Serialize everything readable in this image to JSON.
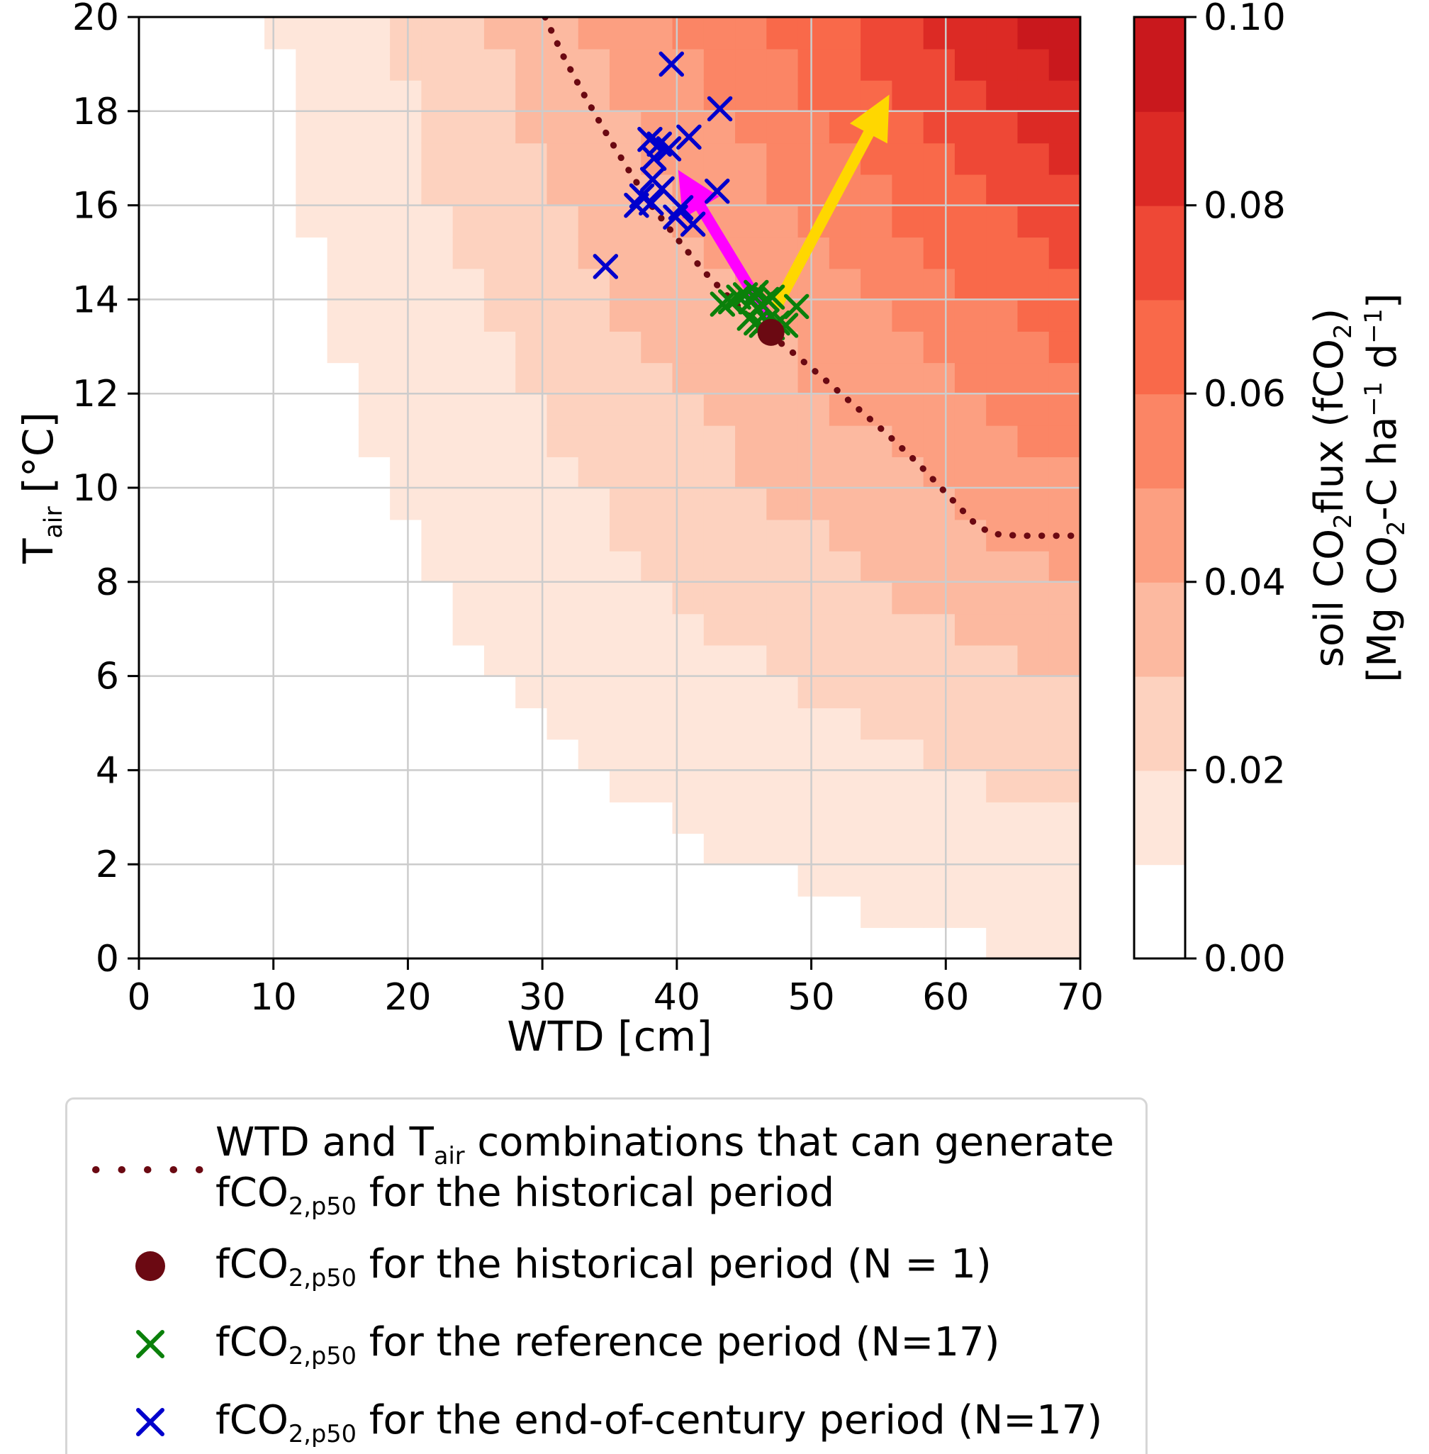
{
  "chart_data": {
    "type": "heatmap",
    "xlabel": "WTD [cm]",
    "ylabel_parts": [
      {
        "t": "T"
      },
      {
        "sub": "air"
      },
      {
        "t": " [°C]"
      }
    ],
    "xlim": [
      0,
      70
    ],
    "ylim": [
      0,
      20
    ],
    "xticks": [
      0,
      10,
      20,
      30,
      40,
      50,
      60,
      70
    ],
    "yticks": [
      0,
      2,
      4,
      6,
      8,
      10,
      12,
      14,
      16,
      18,
      20
    ],
    "grid": true,
    "grid_color": "#cccccc",
    "levels": {
      "min": 0.0,
      "max": 0.1,
      "step": 0.01
    },
    "band_colors": [
      "#ffffff",
      "#fee6da",
      "#fdd2bf",
      "#fcb9a0",
      "#fc9f81",
      "#fb8565",
      "#f9694a",
      "#ee4836",
      "#dc2a25",
      "#c9181d"
    ],
    "field_model": {
      "description": "estimated fCO2 surface: fCO2 = fmax*(WTD/70)^1.2*((Tair+5)/25)^1.4",
      "fmax": 0.1,
      "w_max": 70,
      "w_exp": 1.2,
      "t_offset": 5,
      "t_scale": 25,
      "t_exp": 1.4,
      "grid_nx": 30,
      "grid_ny": 30
    },
    "p50_contour": {
      "color": "#6b0912",
      "points": [
        [
          30.2,
          20
        ],
        [
          31.5,
          19.2
        ],
        [
          33,
          18.4
        ],
        [
          34.6,
          17.6
        ],
        [
          36.3,
          16.8
        ],
        [
          38.1,
          16.0
        ],
        [
          40.0,
          15.3
        ],
        [
          42.0,
          14.6
        ],
        [
          44.2,
          13.95
        ],
        [
          46.3,
          13.4
        ],
        [
          48.5,
          12.9
        ],
        [
          50.8,
          12.35
        ],
        [
          53.2,
          11.75
        ],
        [
          55.6,
          11.15
        ],
        [
          58.0,
          10.5
        ],
        [
          60.3,
          9.8
        ],
        [
          62.3,
          9.2
        ],
        [
          63.5,
          9.02
        ],
        [
          65.5,
          8.98
        ],
        [
          68.0,
          8.98
        ],
        [
          70.0,
          8.98
        ]
      ]
    },
    "historical_point": {
      "color": "#6b0912",
      "x": 47.0,
      "y": 13.3
    },
    "reference_points": {
      "color": "#0a800a",
      "points": [
        [
          43.4,
          13.9
        ],
        [
          44.0,
          13.95
        ],
        [
          44.6,
          14.05
        ],
        [
          45.1,
          14.1
        ],
        [
          45.5,
          13.95
        ],
        [
          45.9,
          14.15
        ],
        [
          46.3,
          13.9
        ],
        [
          46.7,
          14.0
        ],
        [
          47.1,
          14.05
        ],
        [
          45.4,
          13.6
        ],
        [
          45.9,
          13.5
        ],
        [
          46.3,
          13.45
        ],
        [
          46.7,
          13.55
        ],
        [
          47.1,
          13.4
        ],
        [
          47.5,
          13.5
        ],
        [
          48.1,
          13.45
        ],
        [
          48.9,
          13.85
        ]
      ]
    },
    "end_of_century_points": {
      "color": "#0000cc",
      "points": [
        [
          39.6,
          19.0
        ],
        [
          43.2,
          18.05
        ],
        [
          40.9,
          17.45
        ],
        [
          38.0,
          17.4
        ],
        [
          38.7,
          17.3
        ],
        [
          39.4,
          17.2
        ],
        [
          38.3,
          17.0
        ],
        [
          43.0,
          16.3
        ],
        [
          38.2,
          16.55
        ],
        [
          38.9,
          16.35
        ],
        [
          37.4,
          16.2
        ],
        [
          38.1,
          16.05
        ],
        [
          37.0,
          16.0
        ],
        [
          40.3,
          15.95
        ],
        [
          41.2,
          15.6
        ],
        [
          39.9,
          15.75
        ],
        [
          34.7,
          14.7
        ]
      ]
    },
    "arrows": [
      {
        "name": "magenta-arrow",
        "color": "#ff00ff",
        "from": [
          46.9,
          13.55
        ],
        "to": [
          40.1,
          16.75
        ]
      },
      {
        "name": "yellow-arrow",
        "color": "#ffd700",
        "from": [
          47.4,
          13.85
        ],
        "to": [
          55.8,
          18.35
        ]
      }
    ],
    "colorbar": {
      "ticks": [
        "0.00",
        "0.02",
        "0.04",
        "0.06",
        "0.08",
        "0.10"
      ],
      "tick_values": [
        0,
        0.02,
        0.04,
        0.06,
        0.08,
        0.1
      ],
      "label_line1_parts": [
        {
          "t": "soil CO"
        },
        {
          "sub": "2"
        },
        {
          "t": "flux (fCO"
        },
        {
          "sub": "2"
        },
        {
          "t": ")"
        }
      ],
      "label_line2_parts": [
        {
          "t": "[Mg CO"
        },
        {
          "sub": "2"
        },
        {
          "t": "-C ha"
        },
        {
          "sup": "−1"
        },
        {
          "t": " d"
        },
        {
          "sup": "−1"
        },
        {
          "t": "]"
        }
      ]
    }
  },
  "legend": {
    "items": [
      {
        "symbol": "dotted-line",
        "color": "#6b0912",
        "label_parts": [
          {
            "t": "WTD and T"
          },
          {
            "sub": "air"
          },
          {
            "t": " combinations that can generate\nfCO"
          },
          {
            "sub": "2,p50"
          },
          {
            "t": " for the historical period"
          }
        ]
      },
      {
        "symbol": "circle",
        "color": "#6b0912",
        "label_parts": [
          {
            "t": "fCO"
          },
          {
            "sub": "2,p50"
          },
          {
            "t": " for the historical period (N = 1)"
          }
        ]
      },
      {
        "symbol": "x",
        "color": "#0a800a",
        "label_parts": [
          {
            "t": "fCO"
          },
          {
            "sub": "2,p50"
          },
          {
            "t": " for the reference period (N=17)"
          }
        ]
      },
      {
        "symbol": "x",
        "color": "#0000cc",
        "label_parts": [
          {
            "t": "fCO"
          },
          {
            "sub": "2,p50"
          },
          {
            "t": " for the end-of-century period (N=17)"
          }
        ]
      }
    ]
  }
}
